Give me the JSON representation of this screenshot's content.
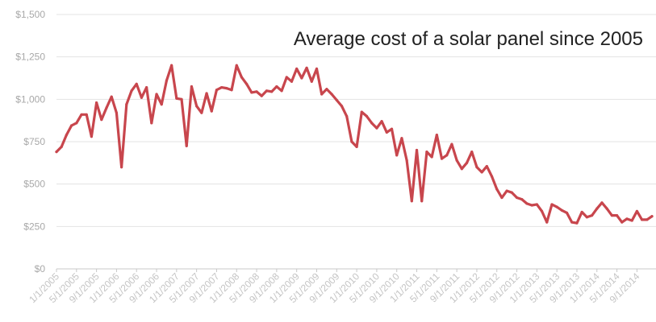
{
  "colors": {
    "line": "#c8464d",
    "grid": "#e3e3e3",
    "tick_text": "#a8a8a8"
  },
  "chart_data": {
    "type": "line",
    "title": "Average cost of a solar panel since 2005",
    "xlabel": "",
    "ylabel": "",
    "ylim": [
      0,
      1500
    ],
    "y_ticks": [
      0,
      250,
      500,
      750,
      1000,
      1250,
      1500
    ],
    "y_tick_labels": [
      "$0",
      "$250",
      "$500",
      "$750",
      "$1,000",
      "$1,250",
      "$1,500"
    ],
    "x_tick_labels": [
      "1/1/2005",
      "5/1/2005",
      "9/1/2005",
      "1/1/2006",
      "5/1/2006",
      "9/1/2006",
      "1/1/2007",
      "5/1/2007",
      "9/1/2007",
      "1/1/2008",
      "5/1/2008",
      "9/1/2008",
      "1/1/2009",
      "5/1/2009",
      "9/1/2009",
      "1/1/2010",
      "5/1/2010",
      "9/1/2010",
      "1/1/2011",
      "5/1/2011",
      "9/1/2011",
      "1/1/2012",
      "5/1/2012",
      "9/1/2012",
      "1/1/2013",
      "5/1/2013",
      "9/1/2013",
      "1/1/2014",
      "5/1/2014",
      "9/1/2014"
    ],
    "x_tick_step": 4,
    "grid": true,
    "series": [
      {
        "name": "Average cost",
        "values": [
          690,
          720,
          790,
          845,
          860,
          910,
          910,
          780,
          980,
          880,
          950,
          1015,
          920,
          600,
          970,
          1050,
          1090,
          1010,
          1070,
          860,
          1030,
          970,
          1110,
          1200,
          1005,
          1000,
          725,
          1075,
          960,
          920,
          1035,
          930,
          1055,
          1070,
          1065,
          1055,
          1200,
          1130,
          1090,
          1040,
          1045,
          1020,
          1050,
          1045,
          1075,
          1050,
          1130,
          1105,
          1180,
          1125,
          1185,
          1105,
          1180,
          1030,
          1060,
          1030,
          995,
          960,
          900,
          750,
          720,
          925,
          900,
          860,
          830,
          870,
          805,
          825,
          670,
          770,
          640,
          400,
          700,
          400,
          690,
          660,
          790,
          650,
          670,
          735,
          640,
          590,
          625,
          690,
          600,
          570,
          605,
          545,
          470,
          420,
          460,
          450,
          420,
          410,
          385,
          375,
          380,
          340,
          275,
          380,
          365,
          345,
          330,
          275,
          270,
          335,
          305,
          315,
          355,
          390,
          355,
          315,
          315,
          275,
          295,
          285,
          340,
          290,
          290,
          310
        ]
      }
    ]
  }
}
